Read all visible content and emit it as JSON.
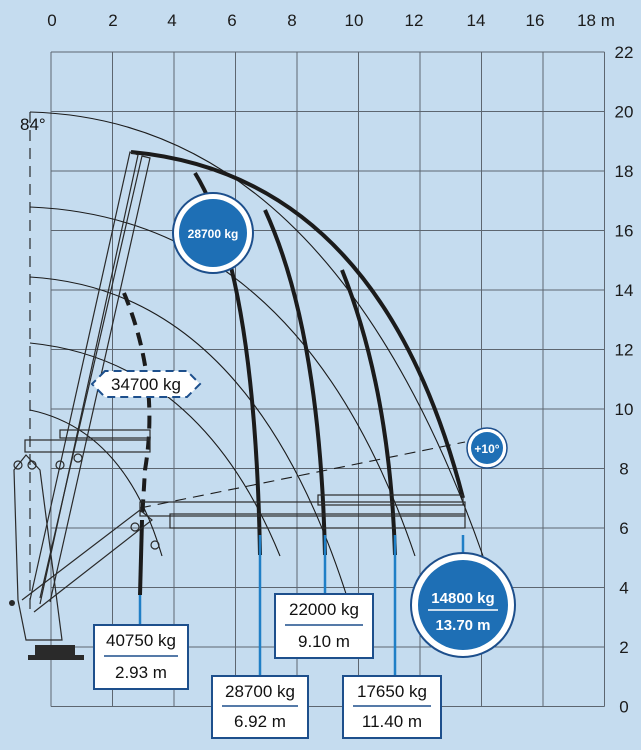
{
  "axes": {
    "x_ticks": [
      "0",
      "2",
      "4",
      "6",
      "8",
      "10",
      "12",
      "14",
      "16",
      "18 m"
    ],
    "y_ticks": [
      "22",
      "20",
      "18",
      "16",
      "14",
      "12",
      "10",
      "8",
      "6",
      "4",
      "2",
      "0"
    ]
  },
  "angle_labels": {
    "max": "84°",
    "jib": "+10°"
  },
  "capacities": {
    "max_load": "28700 kg",
    "inner": "34700 kg",
    "max_reach": {
      "load": "14800 kg",
      "radius": "13.70 m"
    },
    "points": [
      {
        "load": "40750 kg",
        "radius": "2.93 m"
      },
      {
        "load": "28700 kg",
        "radius": "6.92 m"
      },
      {
        "load": "22000 kg",
        "radius": "9.10 m"
      },
      {
        "load": "17650 kg",
        "radius": "11.40 m"
      }
    ]
  },
  "colors": {
    "background": "#c5dcef",
    "accent": "#1f7fc6",
    "badge": "#1e6fb5",
    "badge_border": "#1d4f8c"
  }
}
